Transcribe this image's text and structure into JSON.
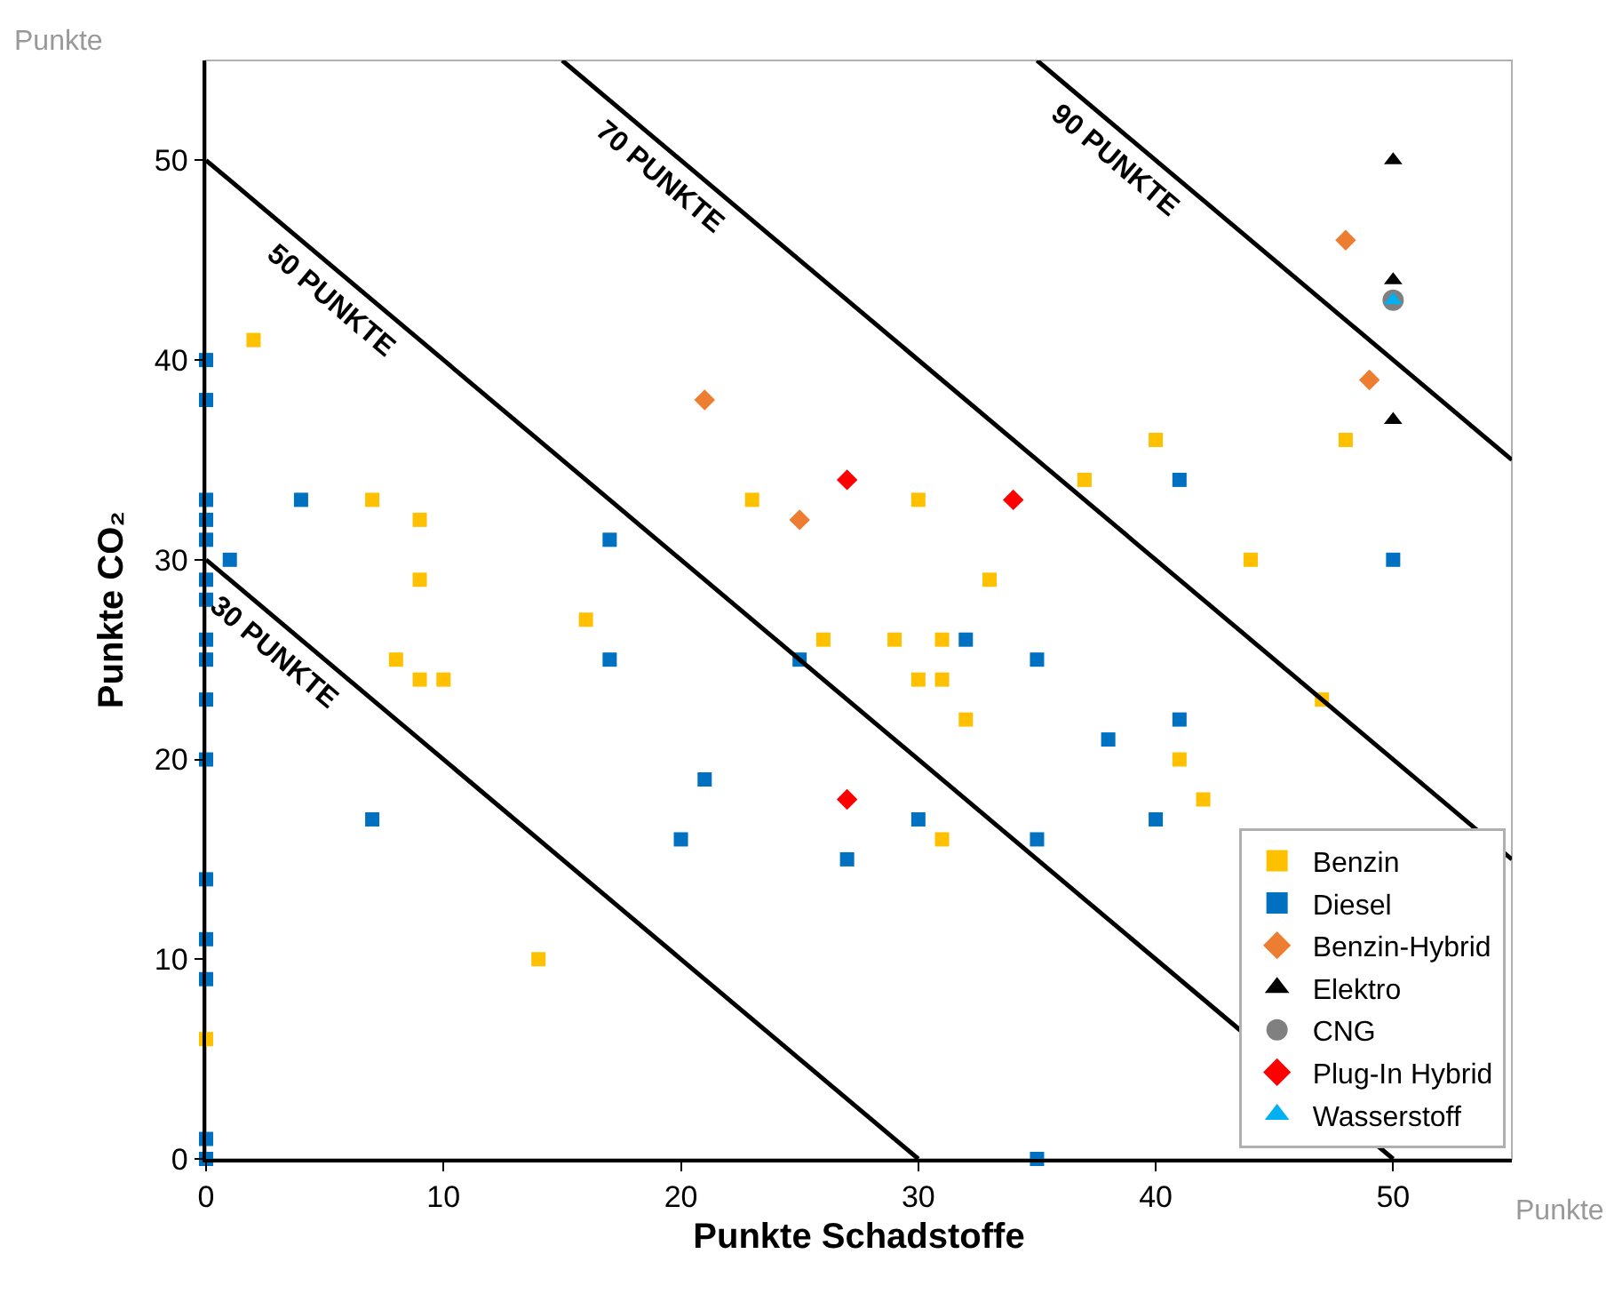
{
  "chart_data": {
    "type": "scatter",
    "xlabel": "Punkte Schadstoffe",
    "ylabel": "Punkte CO₂",
    "xlim": [
      0,
      55
    ],
    "ylim": [
      0,
      55
    ],
    "xticks": [
      0,
      10,
      20,
      30,
      40,
      50
    ],
    "yticks": [
      0,
      10,
      20,
      30,
      40,
      50
    ],
    "grid": false,
    "legend": "bottom right",
    "series": [
      {
        "name": "Benzin",
        "color": "#ffc000",
        "marker": "square",
        "x": [
          2,
          7,
          9,
          9,
          8,
          9,
          10,
          16,
          23,
          0,
          14,
          30,
          33,
          26,
          29,
          31,
          30,
          31,
          32,
          31,
          37,
          40,
          48,
          44,
          47,
          41,
          42
        ],
        "values": [
          41,
          33,
          32,
          29,
          25,
          24,
          24,
          27,
          33,
          6,
          10,
          33,
          29,
          26,
          26,
          26,
          24,
          24,
          22,
          16,
          34,
          36,
          36,
          30,
          23,
          20,
          18
        ]
      },
      {
        "name": "Diesel",
        "color": "#0070c0",
        "marker": "square",
        "x": [
          0,
          0,
          0,
          0,
          0,
          0,
          0,
          0,
          0,
          0,
          0,
          0,
          0,
          0,
          0,
          0,
          1,
          4,
          17,
          17,
          7,
          20,
          21,
          25,
          32,
          35,
          41,
          50,
          41,
          38,
          30,
          27,
          35,
          40,
          35
        ],
        "values": [
          40,
          38,
          33,
          32,
          31,
          29,
          28,
          26,
          25,
          23,
          20,
          14,
          11,
          9,
          1,
          0,
          30,
          33,
          31,
          25,
          17,
          16,
          19,
          25,
          26,
          25,
          34,
          30,
          22,
          21,
          17,
          15,
          16,
          17,
          0
        ]
      },
      {
        "name": "Benzin-Hybrid",
        "color": "#ed7d31",
        "marker": "diamond",
        "x": [
          21,
          25,
          48,
          49
        ],
        "values": [
          38,
          32,
          46,
          39
        ]
      },
      {
        "name": "Elektro",
        "color": "#000000",
        "marker": "triangle",
        "x": [
          50,
          50,
          50
        ],
        "values": [
          50,
          44,
          37
        ]
      },
      {
        "name": "CNG",
        "color": "#808080",
        "marker": "circle",
        "x": [
          50
        ],
        "values": [
          43
        ]
      },
      {
        "name": "Plug-In Hybrid",
        "color": "#ff0000",
        "marker": "diamond",
        "x": [
          27,
          34,
          27
        ],
        "values": [
          34,
          33,
          18
        ]
      },
      {
        "name": "Wasserstoff",
        "color": "#00b0f0",
        "marker": "triangle",
        "x": [
          50
        ],
        "values": [
          43
        ]
      },
      {
        "name": "30 PUNKTE",
        "type": "line",
        "color": "#000000",
        "marker": "none",
        "x": [
          0,
          30
        ],
        "values": [
          30,
          0
        ]
      },
      {
        "name": "50 PUNKTE",
        "type": "line",
        "color": "#000000",
        "marker": "none",
        "x": [
          0,
          50
        ],
        "values": [
          50,
          0
        ]
      },
      {
        "name": "70 PUNKTE",
        "type": "line",
        "color": "#000000",
        "marker": "none",
        "x": [
          15,
          55
        ],
        "values": [
          55,
          15
        ]
      },
      {
        "name": "90 PUNKTE",
        "type": "line",
        "color": "#000000",
        "marker": "none",
        "x": [
          35,
          55
        ],
        "values": [
          55,
          35
        ]
      }
    ],
    "annotations": [
      "Punkte",
      "Punkte"
    ]
  }
}
